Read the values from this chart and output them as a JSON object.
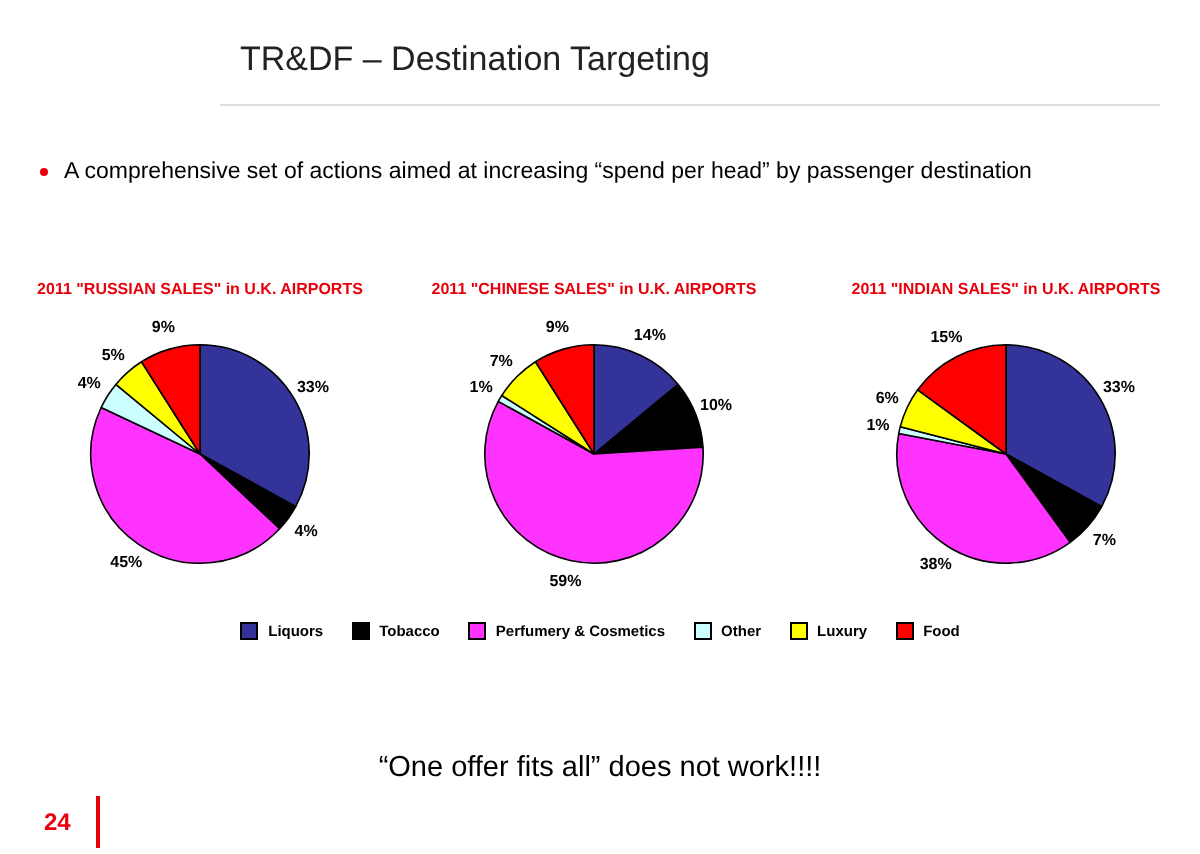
{
  "chart_data": [
    {
      "type": "pie",
      "title": "2011 \"RUSSIAN SALES\" in U.K. AIRPORTS",
      "categories": [
        "Liquors",
        "Tobacco",
        "Perfumery & Cosmetics",
        "Other",
        "Luxury",
        "Food"
      ],
      "values": [
        33,
        4,
        45,
        4,
        5,
        9
      ],
      "value_labels": [
        "33%",
        "4%",
        "45%",
        "4%",
        "5%",
        "9%"
      ],
      "colors": [
        "#333399",
        "#000000",
        "#ff33ff",
        "#ccffff",
        "#ffff00",
        "#ff0000"
      ],
      "legend": "bottom",
      "annotations": [
        "TR&DF – Destination Targeting",
        "A comprehensive set of actions aimed at increasing “spend per head” by passenger destination",
        "“One offer fits all” does not work!!!!",
        "24"
      ]
    },
    {
      "type": "pie",
      "title": "2011 \"CHINESE SALES\" in U.K. AIRPORTS",
      "categories": [
        null,
        null,
        null,
        null,
        null,
        null
      ],
      "values": [
        14,
        10,
        59,
        1,
        7,
        9
      ],
      "value_labels": [
        "14%",
        "10%",
        "59%",
        "1%",
        "7%",
        "9%"
      ],
      "colors": [
        "#333399",
        "#000000",
        "#ff33ff",
        "#ccffff",
        "#ffff00",
        "#ff0000"
      ]
    },
    {
      "type": "pie",
      "title": "2011 \"INDIAN SALES\" in U.K. AIRPORTS",
      "categories": [
        null,
        null,
        null,
        null,
        null,
        null
      ],
      "values": [
        33,
        7,
        38,
        1,
        6,
        15
      ],
      "value_labels": [
        "33%",
        "7%",
        "38%",
        "1%",
        "6%",
        "15%"
      ],
      "colors": [
        "#333399",
        "#000000",
        "#ff33ff",
        "#ccffff",
        "#ffff00",
        "#ff0000"
      ]
    }
  ]
}
